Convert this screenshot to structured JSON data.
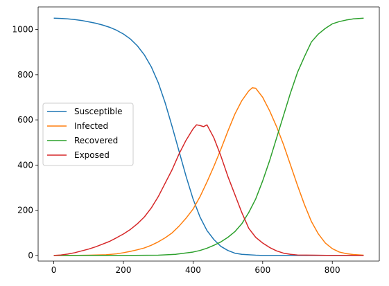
{
  "chart_data": {
    "type": "line",
    "title": "",
    "xlabel": "",
    "ylabel": "",
    "xlim": [
      -45,
      935
    ],
    "ylim": [
      -25,
      1100
    ],
    "xticks": [
      0,
      200,
      400,
      600,
      800
    ],
    "yticks": [
      0,
      200,
      400,
      600,
      800,
      1000
    ],
    "grid": false,
    "legend_position": "center-left",
    "series": [
      {
        "name": "Susceptible",
        "color": "#1f77b4",
        "x": [
          0,
          20,
          40,
          60,
          80,
          100,
          120,
          140,
          160,
          180,
          200,
          220,
          240,
          260,
          280,
          300,
          320,
          340,
          360,
          380,
          400,
          420,
          440,
          460,
          480,
          500,
          520,
          540,
          560,
          580,
          600,
          650,
          700,
          750,
          800,
          850,
          890
        ],
        "y": [
          1050,
          1049,
          1047,
          1044,
          1040,
          1034,
          1028,
          1020,
          1010,
          997,
          980,
          958,
          928,
          888,
          835,
          765,
          675,
          570,
          460,
          350,
          250,
          170,
          110,
          70,
          40,
          22,
          10,
          5,
          3,
          1,
          0,
          0,
          0,
          0,
          0,
          0,
          0
        ]
      },
      {
        "name": "Infected",
        "color": "#ff7f0e",
        "x": [
          0,
          50,
          100,
          150,
          180,
          200,
          220,
          240,
          260,
          280,
          300,
          320,
          340,
          360,
          380,
          400,
          420,
          440,
          460,
          480,
          500,
          520,
          540,
          560,
          570,
          580,
          600,
          620,
          640,
          660,
          680,
          700,
          720,
          740,
          760,
          780,
          800,
          820,
          840,
          860,
          890
        ],
        "y": [
          0,
          0,
          1,
          3,
          7,
          12,
          18,
          25,
          33,
          45,
          60,
          78,
          100,
          130,
          165,
          205,
          260,
          325,
          395,
          470,
          550,
          625,
          685,
          728,
          742,
          740,
          700,
          640,
          570,
          490,
          400,
          310,
          225,
          150,
          95,
          55,
          30,
          15,
          8,
          4,
          1
        ]
      },
      {
        "name": "Recovered",
        "color": "#2ca02c",
        "x": [
          0,
          100,
          200,
          300,
          350,
          400,
          420,
          440,
          460,
          480,
          500,
          520,
          540,
          560,
          580,
          600,
          620,
          640,
          660,
          680,
          700,
          720,
          740,
          760,
          780,
          800,
          820,
          840,
          860,
          890
        ],
        "y": [
          0,
          0,
          0,
          1,
          5,
          15,
          22,
          32,
          45,
          60,
          80,
          105,
          140,
          190,
          250,
          330,
          420,
          520,
          620,
          720,
          810,
          880,
          945,
          980,
          1005,
          1025,
          1035,
          1042,
          1047,
          1050
        ]
      },
      {
        "name": "Exposed",
        "color": "#d62728",
        "x": [
          0,
          20,
          40,
          60,
          80,
          100,
          120,
          140,
          160,
          180,
          200,
          220,
          240,
          260,
          280,
          300,
          320,
          340,
          360,
          380,
          400,
          410,
          420,
          430,
          440,
          460,
          480,
          500,
          520,
          540,
          560,
          580,
          600,
          620,
          640,
          660,
          680,
          700,
          750,
          800,
          890
        ],
        "y": [
          0,
          2,
          6,
          12,
          20,
          28,
          38,
          50,
          62,
          78,
          95,
          115,
          140,
          170,
          210,
          260,
          320,
          380,
          450,
          510,
          560,
          578,
          575,
          570,
          578,
          520,
          440,
          350,
          270,
          190,
          120,
          80,
          55,
          35,
          20,
          10,
          5,
          2,
          1,
          0,
          0
        ]
      }
    ]
  }
}
